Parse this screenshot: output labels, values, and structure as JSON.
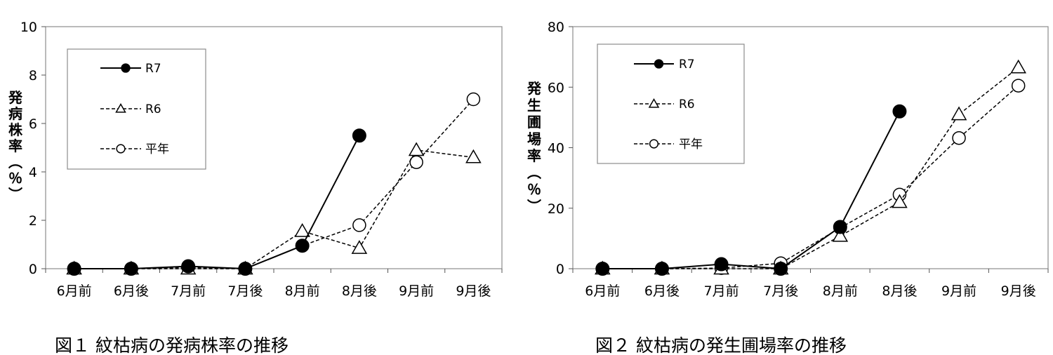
{
  "chart_data": [
    {
      "type": "line",
      "title": "",
      "caption": "図１ 紋枯病の発病株率の推移",
      "ylabel": "発病株率（％）",
      "xlabel": "",
      "categories": [
        "6月前",
        "6月後",
        "7月前",
        "7月後",
        "8月前",
        "8月後",
        "9月前",
        "9月後"
      ],
      "ylim": [
        0,
        10
      ],
      "yticks": [
        0,
        2,
        4,
        6,
        8,
        10
      ],
      "grid": false,
      "legend": "top-left",
      "series": [
        {
          "name": "R7",
          "marker": "filled-circle",
          "line": "solid",
          "values": [
            0,
            0,
            0.1,
            0,
            0.95,
            5.5,
            null,
            null
          ]
        },
        {
          "name": "R6",
          "marker": "triangle",
          "line": "dashed",
          "values": [
            0,
            0,
            0,
            0,
            1.55,
            0.85,
            4.9,
            4.6
          ]
        },
        {
          "name": "平年",
          "marker": "open-circle",
          "line": "dashed",
          "values": [
            0,
            0,
            0.05,
            0,
            0.95,
            1.8,
            4.4,
            7.0
          ]
        }
      ]
    },
    {
      "type": "line",
      "title": "",
      "caption": "図２ 紋枯病の発生圃場率の推移",
      "ylabel": "発生圃場率（％）",
      "xlabel": "",
      "categories": [
        "6月前",
        "6月後",
        "7月前",
        "7月後",
        "8月前",
        "8月後",
        "9月前",
        "9月後"
      ],
      "ylim": [
        0,
        80
      ],
      "yticks": [
        0,
        20,
        40,
        60,
        80
      ],
      "grid": false,
      "legend": "top-left",
      "series": [
        {
          "name": "R7",
          "marker": "filled-circle",
          "line": "solid",
          "values": [
            0,
            0,
            1.5,
            0,
            13.8,
            52,
            null,
            null
          ]
        },
        {
          "name": "R6",
          "marker": "triangle",
          "line": "dashed",
          "values": [
            0,
            0,
            0,
            0,
            10.8,
            22,
            51,
            66.5
          ]
        },
        {
          "name": "平年",
          "marker": "open-circle",
          "line": "dashed",
          "values": [
            0,
            0,
            0.2,
            1.8,
            13.5,
            24.5,
            43.2,
            60.5
          ]
        }
      ]
    }
  ]
}
